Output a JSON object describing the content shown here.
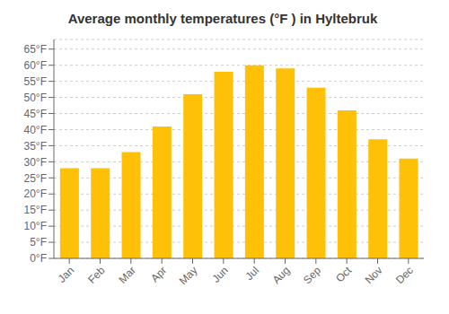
{
  "chart_data": {
    "type": "bar",
    "title": "Average monthly temperatures (°F ) in Hyltebruk",
    "categories": [
      "Jan",
      "Feb",
      "Mar",
      "Apr",
      "May",
      "Jun",
      "Jul",
      "Aug",
      "Sep",
      "Oct",
      "Nov",
      "Dec"
    ],
    "values": [
      28,
      28,
      33,
      41,
      51,
      58,
      60,
      59,
      53,
      46,
      37,
      31
    ],
    "color": "#FFC107",
    "ylim": [
      0,
      68
    ],
    "yticks": [
      {
        "value": 0,
        "label": "0°F"
      },
      {
        "value": 5,
        "label": "5°F"
      },
      {
        "value": 10,
        "label": "10°F"
      },
      {
        "value": 15,
        "label": "15°F"
      },
      {
        "value": 20,
        "label": "20°F"
      },
      {
        "value": 25,
        "label": "25°F"
      },
      {
        "value": 30,
        "label": "30°F"
      },
      {
        "value": 35,
        "label": "35°F"
      },
      {
        "value": 40,
        "label": "40°F"
      },
      {
        "value": 45,
        "label": "45°F"
      },
      {
        "value": 50,
        "label": "50°F"
      },
      {
        "value": 55,
        "label": "55°F"
      },
      {
        "value": 60,
        "label": "60°F"
      },
      {
        "value": 65,
        "label": "65°F"
      }
    ],
    "grid": true
  }
}
